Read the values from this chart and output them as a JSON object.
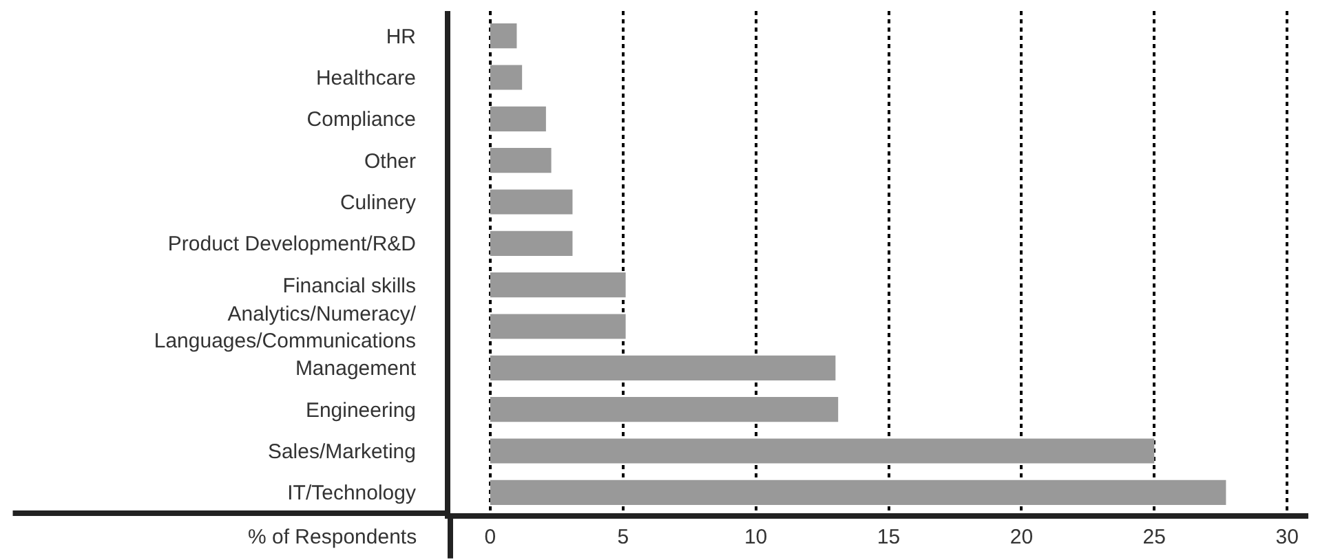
{
  "chart_data": {
    "type": "bar",
    "orientation": "horizontal",
    "xlabel": "% of Respondents",
    "categories": [
      "HR",
      "Healthcare",
      "Compliance",
      "Other",
      "Culinery",
      "Product Development/R&D",
      "Financial skills",
      "Analytics/Numeracy/\nLanguages/Communications",
      "Management",
      "Engineering",
      "Sales/Marketing",
      "IT/Technology"
    ],
    "values": [
      1.0,
      1.2,
      2.1,
      2.3,
      3.1,
      3.1,
      5.1,
      5.1,
      13.0,
      13.1,
      25.0,
      27.7
    ],
    "color": "#999999",
    "xlim": [
      -1.5,
      30.8
    ],
    "xticks": [
      0,
      5,
      10,
      15,
      20,
      25,
      30
    ],
    "grid": "x"
  }
}
